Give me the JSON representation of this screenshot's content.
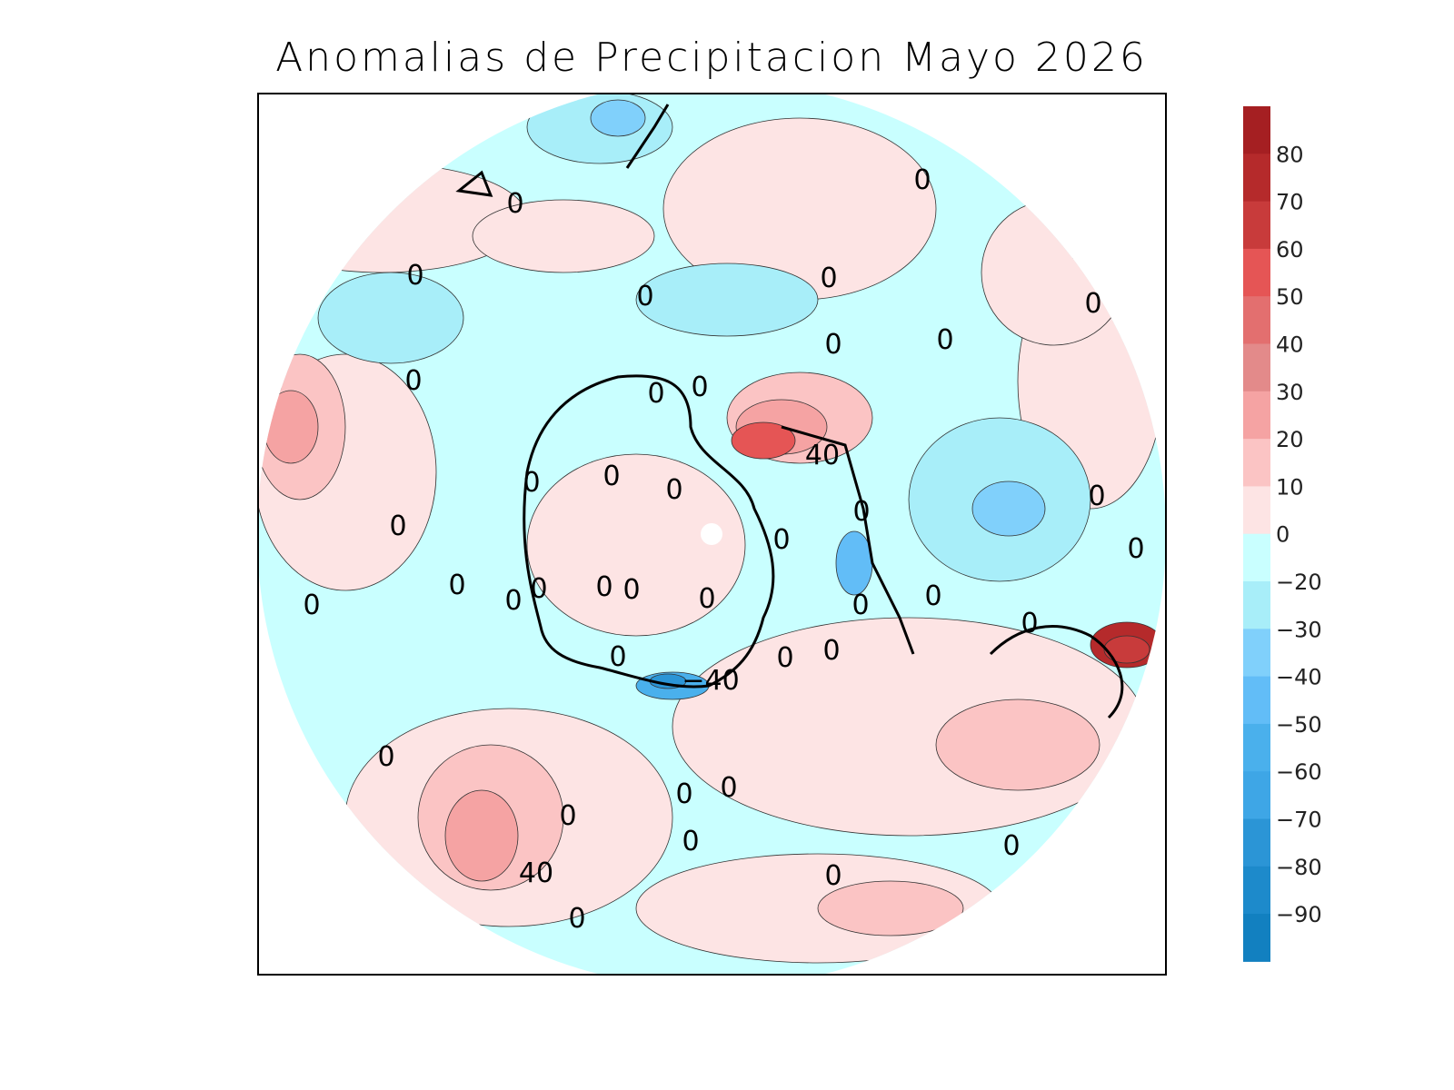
{
  "title": "Anomalias de Precipitacion Mayo 2026",
  "projection": "polar stereographic, northern hemisphere",
  "colorbar": {
    "labels": [
      "80",
      "70",
      "60",
      "50",
      "40",
      "30",
      "20",
      "10",
      "0",
      "−20",
      "−30",
      "−40",
      "−50",
      "−60",
      "−70",
      "−80",
      "−90"
    ],
    "colors": [
      "#a51f22",
      "#b52a2b",
      "#c83b3b",
      "#e55555",
      "#e36f6f",
      "#e38a8a",
      "#f5a3a3",
      "#fbc4c4",
      "#fde4e4",
      "#c9ffff",
      "#a8eef9",
      "#80d0fb",
      "#62bdf7",
      "#4ab0ec",
      "#3ea6e6",
      "#2b95d6",
      "#1d8acb",
      "#1280c0"
    ]
  },
  "contour_labels": [
    {
      "text": "0",
      "lon_lat_hint": "a"
    },
    {
      "text": "40"
    },
    {
      "text": "−40"
    }
  ]
}
